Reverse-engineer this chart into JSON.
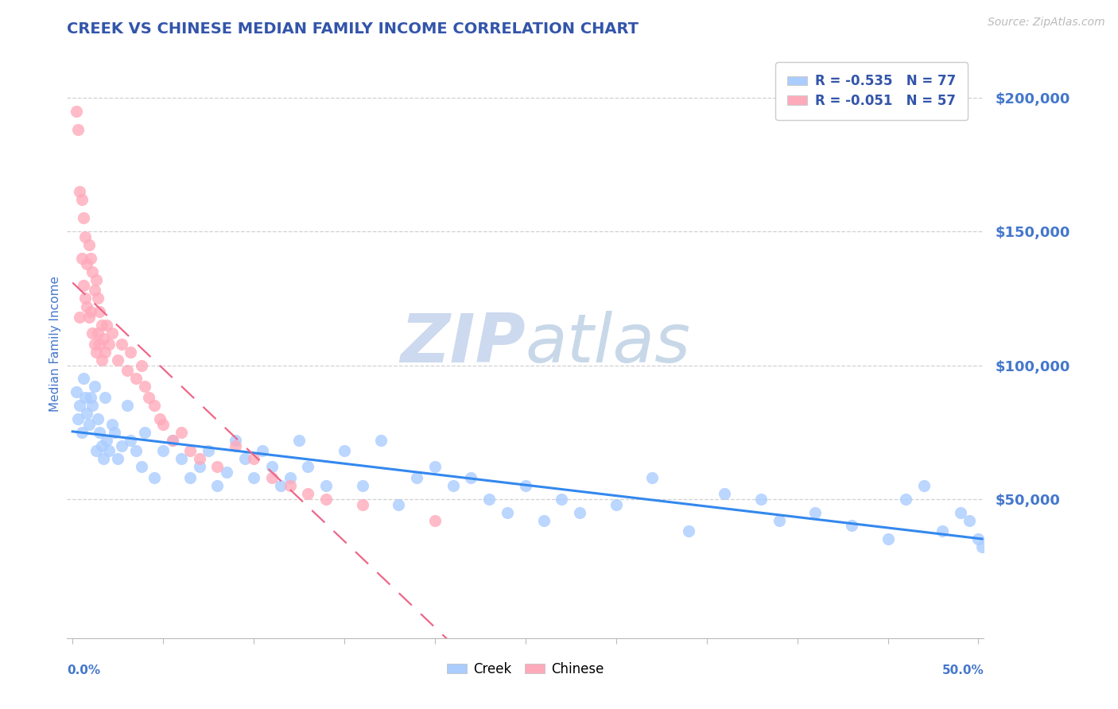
{
  "title": "CREEK VS CHINESE MEDIAN FAMILY INCOME CORRELATION CHART",
  "source": "Source: ZipAtlas.com",
  "ylabel": "Median Family Income",
  "yticks": [
    0,
    50000,
    100000,
    150000,
    200000
  ],
  "ytick_labels": [
    "",
    "$50,000",
    "$100,000",
    "$150,000",
    "$200,000"
  ],
  "ylim": [
    -2000,
    218000
  ],
  "xlim": [
    -0.003,
    0.503
  ],
  "creek_R": "-0.535",
  "creek_N": "77",
  "chinese_R": "-0.051",
  "chinese_N": "57",
  "title_color": "#3355aa",
  "axis_label_color": "#4477cc",
  "tick_label_color": "#4477cc",
  "creek_dot_color": "#aaccff",
  "creek_line_color": "#3388ee",
  "chinese_dot_color": "#ffaabb",
  "chinese_line_color": "#ee6688",
  "watermark_color": "#ddeeff",
  "grid_color": "#cccccc",
  "background_color": "#ffffff",
  "creek_x": [
    0.002,
    0.003,
    0.004,
    0.005,
    0.006,
    0.007,
    0.008,
    0.009,
    0.01,
    0.011,
    0.012,
    0.013,
    0.014,
    0.015,
    0.016,
    0.017,
    0.018,
    0.019,
    0.02,
    0.022,
    0.023,
    0.025,
    0.027,
    0.03,
    0.032,
    0.035,
    0.038,
    0.04,
    0.045,
    0.05,
    0.055,
    0.06,
    0.065,
    0.07,
    0.075,
    0.08,
    0.085,
    0.09,
    0.095,
    0.1,
    0.105,
    0.11,
    0.115,
    0.12,
    0.125,
    0.13,
    0.14,
    0.15,
    0.16,
    0.17,
    0.18,
    0.19,
    0.2,
    0.21,
    0.22,
    0.23,
    0.24,
    0.25,
    0.26,
    0.27,
    0.28,
    0.3,
    0.32,
    0.34,
    0.36,
    0.38,
    0.39,
    0.41,
    0.43,
    0.45,
    0.46,
    0.47,
    0.48,
    0.49,
    0.495,
    0.5,
    0.502
  ],
  "creek_y": [
    90000,
    80000,
    85000,
    75000,
    95000,
    88000,
    82000,
    78000,
    88000,
    85000,
    92000,
    68000,
    80000,
    75000,
    70000,
    65000,
    88000,
    72000,
    68000,
    78000,
    75000,
    65000,
    70000,
    85000,
    72000,
    68000,
    62000,
    75000,
    58000,
    68000,
    72000,
    65000,
    58000,
    62000,
    68000,
    55000,
    60000,
    72000,
    65000,
    58000,
    68000,
    62000,
    55000,
    58000,
    72000,
    62000,
    55000,
    68000,
    55000,
    72000,
    48000,
    58000,
    62000,
    55000,
    58000,
    50000,
    45000,
    55000,
    42000,
    50000,
    45000,
    48000,
    58000,
    38000,
    52000,
    50000,
    42000,
    45000,
    40000,
    35000,
    50000,
    55000,
    38000,
    45000,
    42000,
    35000,
    32000
  ],
  "chinese_x": [
    0.002,
    0.003,
    0.004,
    0.004,
    0.005,
    0.005,
    0.006,
    0.006,
    0.007,
    0.007,
    0.008,
    0.008,
    0.009,
    0.009,
    0.01,
    0.01,
    0.011,
    0.011,
    0.012,
    0.012,
    0.013,
    0.013,
    0.014,
    0.014,
    0.015,
    0.015,
    0.016,
    0.016,
    0.017,
    0.018,
    0.019,
    0.02,
    0.022,
    0.025,
    0.027,
    0.03,
    0.032,
    0.035,
    0.038,
    0.04,
    0.042,
    0.045,
    0.048,
    0.05,
    0.055,
    0.06,
    0.065,
    0.07,
    0.08,
    0.09,
    0.1,
    0.11,
    0.12,
    0.13,
    0.14,
    0.16,
    0.2
  ],
  "chinese_y": [
    195000,
    188000,
    165000,
    118000,
    162000,
    140000,
    155000,
    130000,
    148000,
    125000,
    138000,
    122000,
    145000,
    118000,
    140000,
    120000,
    135000,
    112000,
    128000,
    108000,
    132000,
    105000,
    125000,
    112000,
    120000,
    108000,
    115000,
    102000,
    110000,
    105000,
    115000,
    108000,
    112000,
    102000,
    108000,
    98000,
    105000,
    95000,
    100000,
    92000,
    88000,
    85000,
    80000,
    78000,
    72000,
    75000,
    68000,
    65000,
    62000,
    70000,
    65000,
    58000,
    55000,
    52000,
    50000,
    48000,
    42000
  ]
}
